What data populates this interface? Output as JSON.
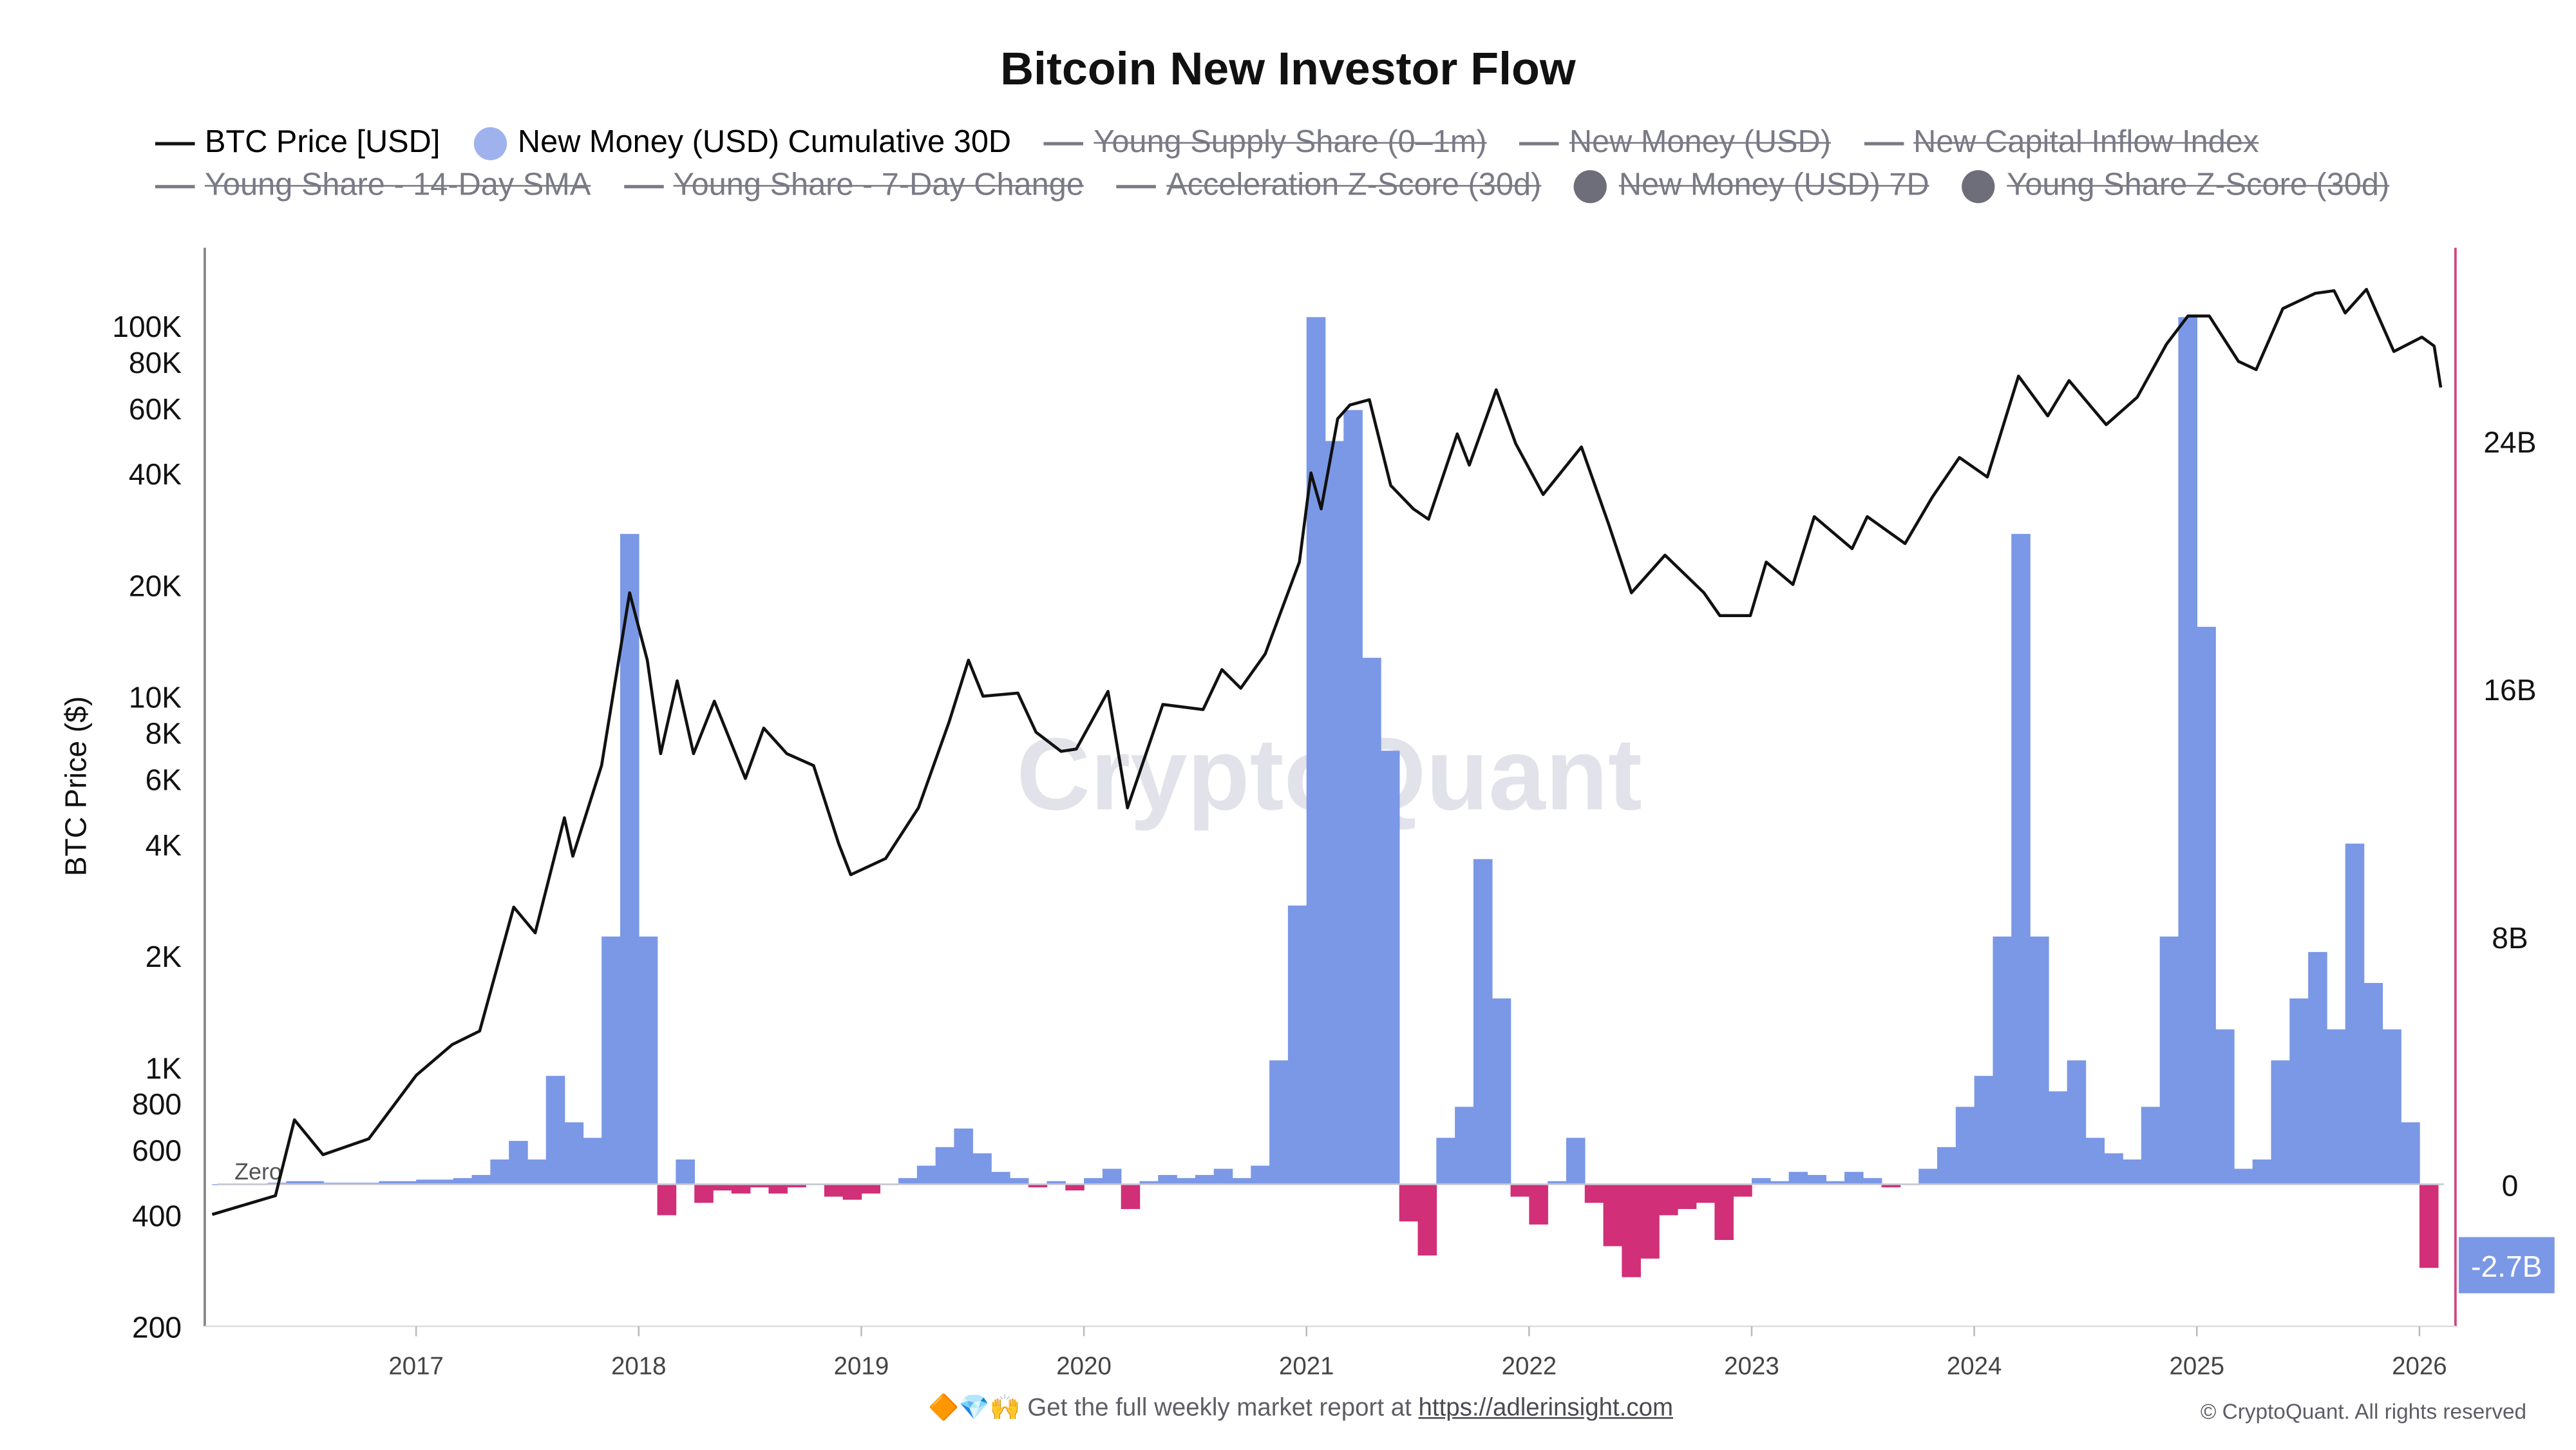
{
  "chart_data": {
    "type": "line+bar",
    "title": "Bitcoin New Investor Flow",
    "ylabel_left": "BTC Price ($)",
    "left_axis": {
      "scale": "log",
      "range": [
        200,
        150000
      ],
      "ticks": [
        "100K",
        "80K",
        "60K",
        "40K",
        "20K",
        "10K",
        "8K",
        "6K",
        "4K",
        "2K",
        "1K",
        "800",
        "600",
        "400",
        "200"
      ],
      "tick_values": [
        100000,
        80000,
        60000,
        40000,
        20000,
        10000,
        8000,
        6000,
        4000,
        2000,
        1000,
        800,
        600,
        400,
        200
      ]
    },
    "right_axis": {
      "scale": "linear",
      "unit": "USD billions",
      "ticks": [
        "24B",
        "16B",
        "8B",
        "0"
      ],
      "tick_values": [
        24,
        16,
        8,
        0
      ],
      "current_value_label": "-2.7B"
    },
    "x_ticks": [
      "2017",
      "2018",
      "2019",
      "2020",
      "2021",
      "2022",
      "2023",
      "2024",
      "2025",
      "2026"
    ],
    "zero_label": "Zero",
    "watermark": "CryptoQuant",
    "legend": [
      {
        "label": "BTC Price [USD]",
        "symbol": "line",
        "color": "#111111",
        "enabled": true
      },
      {
        "label": "New Money (USD) Cumulative 30D",
        "symbol": "dot",
        "color": "#9fb2ee",
        "enabled": true
      },
      {
        "label": "Young Supply Share (0–1m)",
        "symbol": "line",
        "enabled": false
      },
      {
        "label": "New Money (USD)",
        "symbol": "line",
        "enabled": false
      },
      {
        "label": "New Capital Inflow Index",
        "symbol": "line",
        "enabled": false
      },
      {
        "label": "Young Share - 14-Day SMA",
        "symbol": "line",
        "enabled": false
      },
      {
        "label": "Young Share - 7-Day Change",
        "symbol": "line",
        "enabled": false
      },
      {
        "label": "Acceleration Z-Score (30d)",
        "symbol": "line",
        "enabled": false
      },
      {
        "label": "New Money (USD) 7D",
        "symbol": "dot",
        "enabled": false
      },
      {
        "label": "Young Share Z-Score (30d)",
        "symbol": "dot",
        "enabled": false
      }
    ],
    "colors": {
      "positive": "#7b98e6",
      "negative": "#d12f78",
      "price": "#111111",
      "right_axis": "#d0487f",
      "current_label_bg": "#7b98e6"
    },
    "price_series": [
      [
        "2016-02-01",
        400
      ],
      [
        "2016-05-15",
        450
      ],
      [
        "2016-06-15",
        720
      ],
      [
        "2016-08-01",
        580
      ],
      [
        "2016-10-15",
        640
      ],
      [
        "2017-01-01",
        950
      ],
      [
        "2017-03-01",
        1150
      ],
      [
        "2017-04-15",
        1250
      ],
      [
        "2017-06-10",
        2700
      ],
      [
        "2017-07-15",
        2300
      ],
      [
        "2017-09-01",
        4700
      ],
      [
        "2017-09-15",
        3700
      ],
      [
        "2017-11-01",
        6500
      ],
      [
        "2017-12-17",
        19000
      ],
      [
        "2018-01-15",
        12500
      ],
      [
        "2018-02-06",
        7000
      ],
      [
        "2018-03-05",
        11000
      ],
      [
        "2018-04-01",
        7000
      ],
      [
        "2018-05-05",
        9700
      ],
      [
        "2018-06-25",
        6000
      ],
      [
        "2018-07-25",
        8200
      ],
      [
        "2018-09-01",
        7000
      ],
      [
        "2018-10-15",
        6500
      ],
      [
        "2018-11-25",
        4000
      ],
      [
        "2018-12-15",
        3300
      ],
      [
        "2019-02-10",
        3650
      ],
      [
        "2019-04-05",
        5000
      ],
      [
        "2019-05-25",
        8500
      ],
      [
        "2019-06-26",
        12500
      ],
      [
        "2019-07-20",
        10000
      ],
      [
        "2019-09-15",
        10200
      ],
      [
        "2019-10-15",
        8000
      ],
      [
        "2019-11-25",
        7100
      ],
      [
        "2019-12-20",
        7200
      ],
      [
        "2020-02-10",
        10300
      ],
      [
        "2020-03-13",
        5000
      ],
      [
        "2020-05-10",
        9500
      ],
      [
        "2020-07-15",
        9200
      ],
      [
        "2020-08-15",
        11800
      ],
      [
        "2020-09-15",
        10500
      ],
      [
        "2020-10-25",
        13000
      ],
      [
        "2020-12-20",
        23000
      ],
      [
        "2021-01-08",
        40000
      ],
      [
        "2021-01-25",
        32000
      ],
      [
        "2021-02-21",
        56000
      ],
      [
        "2021-03-13",
        61000
      ],
      [
        "2021-04-14",
        63000
      ],
      [
        "2021-05-19",
        37000
      ],
      [
        "2021-06-25",
        32000
      ],
      [
        "2021-07-20",
        30000
      ],
      [
        "2021-09-05",
        51000
      ],
      [
        "2021-09-25",
        42000
      ],
      [
        "2021-11-08",
        67000
      ],
      [
        "2021-12-10",
        48000
      ],
      [
        "2022-01-24",
        35000
      ],
      [
        "2022-03-28",
        47000
      ],
      [
        "2022-05-12",
        29000
      ],
      [
        "2022-06-18",
        19000
      ],
      [
        "2022-08-12",
        24000
      ],
      [
        "2022-10-15",
        19000
      ],
      [
        "2022-11-10",
        16500
      ],
      [
        "2022-12-30",
        16500
      ],
      [
        "2023-01-25",
        23000
      ],
      [
        "2023-03-10",
        20000
      ],
      [
        "2023-04-14",
        30500
      ],
      [
        "2023-06-15",
        25000
      ],
      [
        "2023-07-10",
        30500
      ],
      [
        "2023-09-10",
        25800
      ],
      [
        "2023-10-25",
        34500
      ],
      [
        "2023-12-08",
        44000
      ],
      [
        "2024-01-23",
        39000
      ],
      [
        "2024-03-14",
        73000
      ],
      [
        "2024-05-01",
        57000
      ],
      [
        "2024-06-05",
        71000
      ],
      [
        "2024-08-05",
        54000
      ],
      [
        "2024-09-25",
        64000
      ],
      [
        "2024-11-12",
        89000
      ],
      [
        "2024-12-17",
        106000
      ],
      [
        "2025-01-21",
        106000
      ],
      [
        "2025-03-10",
        80000
      ],
      [
        "2025-04-08",
        76000
      ],
      [
        "2025-05-22",
        111000
      ],
      [
        "2025-07-14",
        122000
      ],
      [
        "2025-08-14",
        124000
      ],
      [
        "2025-09-01",
        108000
      ],
      [
        "2025-10-06",
        125000
      ],
      [
        "2025-11-20",
        85000
      ],
      [
        "2026-01-05",
        93000
      ],
      [
        "2026-01-25",
        88000
      ],
      [
        "2026-02-05",
        68000
      ]
    ],
    "new_money_30d_start": "2016-02",
    "new_money_30d_interval": "monthly",
    "new_money_30d_billions": [
      0,
      0,
      0,
      0.05,
      0.1,
      0.1,
      0.05,
      0.05,
      0.05,
      0.1,
      0.1,
      0.15,
      0.15,
      0.2,
      0.3,
      0.8,
      1.4,
      0.8,
      3.5,
      2.0,
      1.5,
      8.0,
      21.0,
      8.0,
      -1.0,
      0.8,
      -0.6,
      -0.2,
      -0.3,
      -0.1,
      -0.3,
      -0.1,
      0,
      -0.4,
      -0.5,
      -0.3,
      0,
      0.2,
      0.6,
      1.2,
      1.8,
      1.0,
      0.4,
      0.2,
      -0.1,
      0.1,
      -0.2,
      0.2,
      0.5,
      -0.8,
      0.1,
      0.3,
      0.2,
      0.3,
      0.5,
      0.2,
      0.6,
      4.0,
      9.0,
      28.0,
      24.0,
      25.0,
      17.0,
      14.0,
      -1.2,
      -2.3,
      1.5,
      2.5,
      10.5,
      6.0,
      -0.4,
      -1.3,
      0.1,
      1.5,
      -0.6,
      -2.0,
      -3.0,
      -2.4,
      -1.0,
      -0.8,
      -0.6,
      -1.8,
      -0.4,
      0.2,
      0.1,
      0.4,
      0.3,
      0.1,
      0.4,
      0.2,
      -0.1,
      0,
      0.5,
      1.2,
      2.5,
      3.5,
      8.0,
      21.0,
      8.0,
      3.0,
      4.0,
      1.5,
      1.0,
      0.8,
      2.5,
      8.0,
      28.0,
      18.0,
      5.0,
      0.5,
      0.8,
      4.0,
      6.0,
      7.5,
      5.0,
      11.0,
      6.5,
      5.0,
      2.0,
      -2.7
    ]
  },
  "footer": {
    "emojis": "🔶💎🙌",
    "text": "Get the full weekly market report at",
    "link": "https://adlerinsight.com",
    "copyright": "© CryptoQuant. All rights reserved"
  }
}
